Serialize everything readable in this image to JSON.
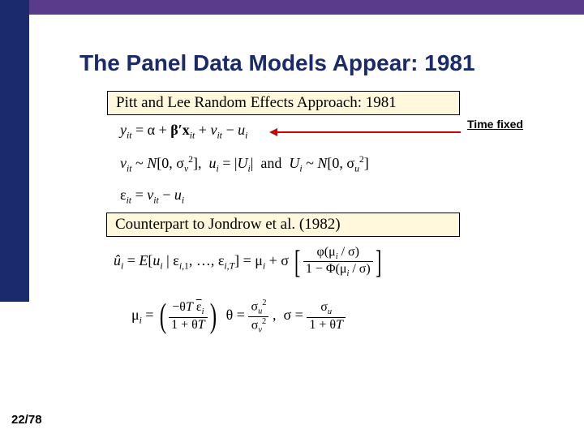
{
  "colors": {
    "dark_blue": "#1a2a6c",
    "purple": "#5a3a8a",
    "box_bg": "#fff8dc",
    "arrow_red": "#cc0000"
  },
  "title": "The Panel Data Models Appear: 1981",
  "box1": "Pitt and Lee Random Effects Approach: 1981",
  "box2": "Counterpart to Jondrow et al. (1982)",
  "annotation": "Time fixed",
  "page": "22/78",
  "eq1_html": "<span class='ital'>y<sub>it</sub></span> = α + <span class='bold'>β′x</span><sub><span class='ital'>it</span></sub> + <span class='ital'>v<sub>it</sub></span> − <span class='ital'>u<sub>i</sub></span>",
  "eq2_html": "<span class='ital'>v<sub>it</sub></span> ~ <span class='ital'>N</span>[0, σ<sub><span class='ital'>v</span></sub><sup>2</sup>],&nbsp; <span class='ital'>u<sub>i</sub></span> = |<span class='ital'>U<sub>i</sub></span>|&nbsp; and &nbsp;<span class='ital'>U<sub>i</sub></span> ~ <span class='ital'>N</span>[0, σ<sub><span class='ital'>u</span></sub><sup>2</sup>]",
  "eq3_html": "ε<sub><span class='ital'>it</span></sub> = <span class='ital'>v<sub>it</sub></span> − <span class='ital'>u<sub>i</sub></span>",
  "eq4_html": "<span class='ital'>û<sub>i</sub></span> = <span class='ital'>E</span>[<span class='ital'>u<sub>i</sub></span> | ε<sub><span class='ital'>i</span>,1</sub>, …, ε<sub><span class='ital'>i,T</span></sub>] = μ<sub><span class='ital'>i</span></sub> + σ <span class='bigbracket'>[</span><span class='frac'><span class='num'>φ(μ<sub><span class='ital'>i</span></sub> / σ)</span><span class='den'>1 − Φ(μ<sub><span class='ital'>i</span></sub> / σ)</span></span><span class='bigbracket'>]</span>",
  "eq5_html": "μ<sub><span class='ital'>i</span></sub> = <span class='paren'>(</span><span class='frac'><span class='num'>−θ<span class='ital'>T</span> <span class='overline'>ε</span><sub><span class='ital'>i</span></sub></span><span class='den'>1 + θ<span class='ital'>T</span></span></span><span class='paren'>)</span>&nbsp; θ = <span class='frac'><span class='num'>σ<sub><span class='ital'>u</span></sub><sup>2</sup></span><span class='den'>σ<sub><span class='ital'>v</span></sub><sup>2</sup></span></span> ,&nbsp; σ = <span class='frac'><span class='num'>σ<sub><span class='ital'>u</span></sub></span><span class='den'>1 + θ<span class='ital'>T</span></span></span>"
}
